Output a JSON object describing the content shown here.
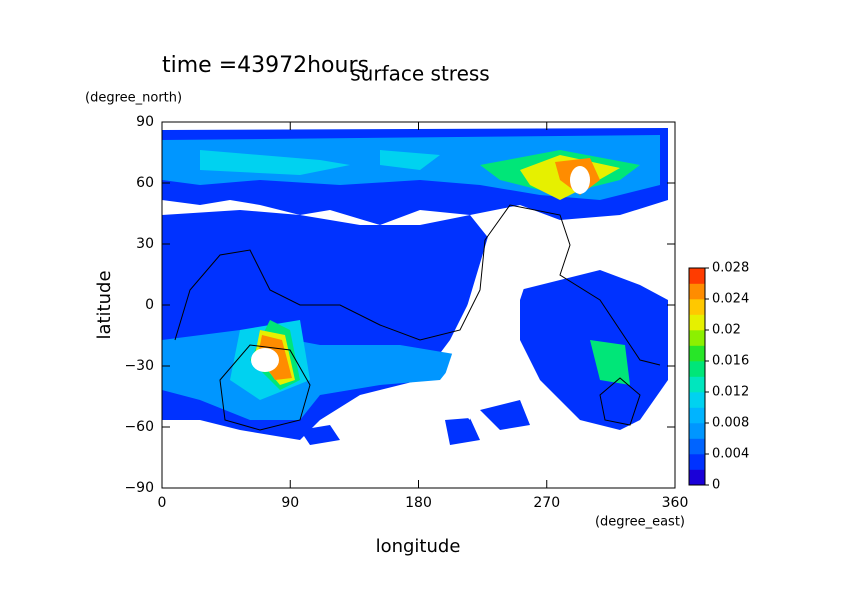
{
  "chart_data": {
    "type": "contour",
    "title": "surface stress",
    "subtitle": "time =43972hours",
    "xlabel": "longitude",
    "ylabel": "latitude",
    "xunit": "(degree_east)",
    "yunit": "(degree_north)",
    "xlim": [
      0,
      360
    ],
    "xticks": [
      0,
      90,
      180,
      270,
      360
    ],
    "ylim": [
      -90,
      90
    ],
    "yticks": [
      {
        "value": -90,
        "label": "−90"
      },
      {
        "value": -60,
        "label": "−60"
      },
      {
        "value": -30,
        "label": "−30"
      },
      0,
      30,
      60,
      90
    ],
    "clim": [
      0,
      0.028
    ],
    "cticks": [
      0,
      0.004,
      0.008,
      0.012,
      0.016,
      0.02,
      0.024,
      0.028
    ],
    "colors": [
      "#1a00d8",
      "#0032ff",
      "#0064ff",
      "#0096ff",
      "#00b4ff",
      "#00d2f0",
      "#00e6be",
      "#00e678",
      "#28e628",
      "#8cf000",
      "#e6f000",
      "#ffc800",
      "#ff8c00",
      "#ff3c00"
    ]
  }
}
